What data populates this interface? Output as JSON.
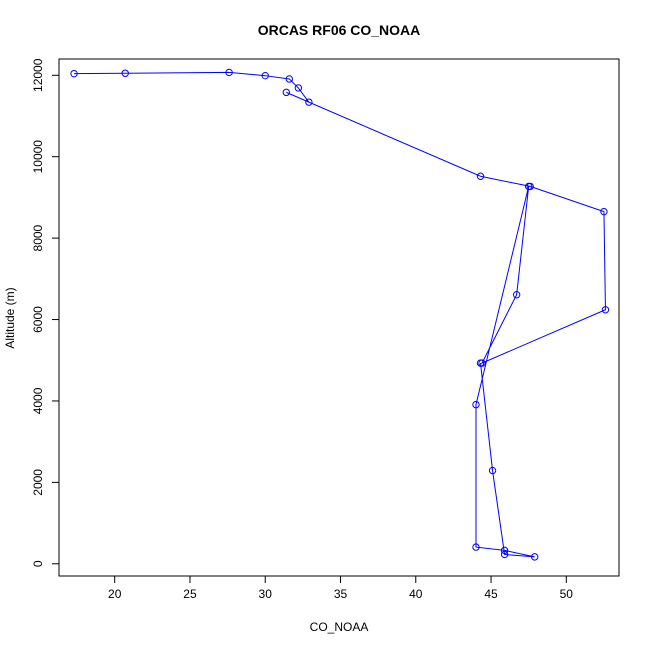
{
  "chart_data": {
    "type": "line",
    "title": "ORCAS RF06 CO_NOAA",
    "xlabel": "CO_NOAA",
    "ylabel": "Altitude (m)",
    "xlim": [
      16.3,
      53.5
    ],
    "ylim": [
      -300,
      12400
    ],
    "x_ticks": [
      20,
      25,
      30,
      35,
      40,
      45,
      50
    ],
    "y_ticks": [
      0,
      2000,
      4000,
      6000,
      8000,
      10000,
      12000
    ],
    "color": "#0000ff",
    "markers": "open-circle",
    "points": [
      {
        "x": 17.3,
        "y": 12040
      },
      {
        "x": 20.7,
        "y": 12050
      },
      {
        "x": 27.6,
        "y": 12070
      },
      {
        "x": 30.0,
        "y": 11990
      },
      {
        "x": 31.6,
        "y": 11910
      },
      {
        "x": 32.2,
        "y": 11690
      },
      {
        "x": 32.9,
        "y": 11340
      },
      {
        "x": 31.4,
        "y": 11580
      },
      {
        "x": 44.3,
        "y": 9520
      },
      {
        "x": 47.6,
        "y": 9270
      },
      {
        "x": 52.5,
        "y": 8650
      },
      {
        "x": 52.6,
        "y": 6240
      },
      {
        "x": 44.4,
        "y": 4930
      },
      {
        "x": 46.7,
        "y": 6610
      },
      {
        "x": 47.5,
        "y": 9270
      },
      {
        "x": 44.0,
        "y": 3910
      },
      {
        "x": 44.0,
        "y": 410
      },
      {
        "x": 45.9,
        "y": 330
      },
      {
        "x": 47.9,
        "y": 170
      },
      {
        "x": 45.9,
        "y": 230
      },
      {
        "x": 45.1,
        "y": 2290
      },
      {
        "x": 44.3,
        "y": 4930
      }
    ]
  }
}
